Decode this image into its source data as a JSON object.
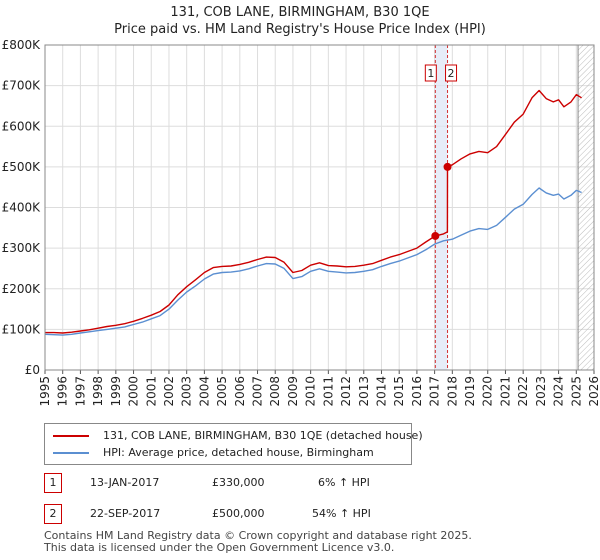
{
  "title_line1": "131, COB LANE, BIRMINGHAM, B30 1QE",
  "title_line2": "Price paid vs. HM Land Registry's House Price Index (HPI)",
  "chart_data": {
    "type": "line",
    "xlim": [
      1995,
      2026
    ],
    "ylim": [
      0,
      800000
    ],
    "x_ticks": [
      1995,
      1996,
      1997,
      1998,
      1999,
      2000,
      2001,
      2002,
      2003,
      2004,
      2005,
      2006,
      2007,
      2008,
      2009,
      2010,
      2011,
      2012,
      2013,
      2014,
      2015,
      2016,
      2017,
      2018,
      2019,
      2020,
      2021,
      2022,
      2023,
      2024,
      2025,
      2026
    ],
    "y_ticks": [
      {
        "value": 0,
        "label": "£0"
      },
      {
        "value": 100000,
        "label": "£100K"
      },
      {
        "value": 200000,
        "label": "£200K"
      },
      {
        "value": 300000,
        "label": "£300K"
      },
      {
        "value": 400000,
        "label": "£400K"
      },
      {
        "value": 500000,
        "label": "£500K"
      },
      {
        "value": 600000,
        "label": "£600K"
      },
      {
        "value": 700000,
        "label": "£700K"
      },
      {
        "value": 800000,
        "label": "£800K"
      }
    ],
    "grid": true,
    "hatched_region_start": 2025.1,
    "series": [
      {
        "name": "131, COB LANE, BIRMINGHAM, B30 1QE (detached house)",
        "color": "#cc0000",
        "points": [
          [
            1995.0,
            92000
          ],
          [
            1995.5,
            92000
          ],
          [
            1996.0,
            91000
          ],
          [
            1996.5,
            93000
          ],
          [
            1997.0,
            96000
          ],
          [
            1997.5,
            99000
          ],
          [
            1998.0,
            103000
          ],
          [
            1998.5,
            107000
          ],
          [
            1999.0,
            110000
          ],
          [
            1999.5,
            114000
          ],
          [
            2000.0,
            120000
          ],
          [
            2000.5,
            127000
          ],
          [
            2001.0,
            135000
          ],
          [
            2001.5,
            144000
          ],
          [
            2002.0,
            160000
          ],
          [
            2002.5,
            185000
          ],
          [
            2003.0,
            205000
          ],
          [
            2003.5,
            222000
          ],
          [
            2004.0,
            240000
          ],
          [
            2004.5,
            252000
          ],
          [
            2005.0,
            255000
          ],
          [
            2005.5,
            256000
          ],
          [
            2006.0,
            260000
          ],
          [
            2006.5,
            265000
          ],
          [
            2007.0,
            272000
          ],
          [
            2007.5,
            278000
          ],
          [
            2008.0,
            277000
          ],
          [
            2008.5,
            265000
          ],
          [
            2009.0,
            240000
          ],
          [
            2009.5,
            245000
          ],
          [
            2010.0,
            258000
          ],
          [
            2010.5,
            264000
          ],
          [
            2011.0,
            257000
          ],
          [
            2011.5,
            256000
          ],
          [
            2012.0,
            254000
          ],
          [
            2012.5,
            255000
          ],
          [
            2013.0,
            258000
          ],
          [
            2013.5,
            262000
          ],
          [
            2014.0,
            270000
          ],
          [
            2014.5,
            278000
          ],
          [
            2015.0,
            284000
          ],
          [
            2015.5,
            292000
          ],
          [
            2016.0,
            300000
          ],
          [
            2016.5,
            315000
          ],
          [
            2017.04,
            330000
          ],
          [
            2017.5,
            335000
          ],
          [
            2017.72,
            340000
          ],
          [
            2017.73,
            500000
          ],
          [
            2018.0,
            505000
          ],
          [
            2018.5,
            520000
          ],
          [
            2019.0,
            532000
          ],
          [
            2019.5,
            538000
          ],
          [
            2020.0,
            535000
          ],
          [
            2020.5,
            550000
          ],
          [
            2021.0,
            580000
          ],
          [
            2021.5,
            610000
          ],
          [
            2022.0,
            630000
          ],
          [
            2022.5,
            670000
          ],
          [
            2022.9,
            688000
          ],
          [
            2023.3,
            668000
          ],
          [
            2023.7,
            660000
          ],
          [
            2024.0,
            665000
          ],
          [
            2024.3,
            648000
          ],
          [
            2024.7,
            660000
          ],
          [
            2025.0,
            678000
          ],
          [
            2025.3,
            670000
          ]
        ]
      },
      {
        "name": "HPI: Average price, detached house, Birmingham",
        "color": "#5b8fd1",
        "points": [
          [
            1995.0,
            88000
          ],
          [
            1995.5,
            87000
          ],
          [
            1996.0,
            86000
          ],
          [
            1996.5,
            88000
          ],
          [
            1997.0,
            91000
          ],
          [
            1997.5,
            94000
          ],
          [
            1998.0,
            97000
          ],
          [
            1998.5,
            100000
          ],
          [
            1999.0,
            103000
          ],
          [
            1999.5,
            106000
          ],
          [
            2000.0,
            112000
          ],
          [
            2000.5,
            118000
          ],
          [
            2001.0,
            126000
          ],
          [
            2001.5,
            134000
          ],
          [
            2002.0,
            150000
          ],
          [
            2002.5,
            172000
          ],
          [
            2003.0,
            192000
          ],
          [
            2003.5,
            207000
          ],
          [
            2004.0,
            224000
          ],
          [
            2004.5,
            236000
          ],
          [
            2005.0,
            240000
          ],
          [
            2005.5,
            241000
          ],
          [
            2006.0,
            244000
          ],
          [
            2006.5,
            249000
          ],
          [
            2007.0,
            256000
          ],
          [
            2007.5,
            262000
          ],
          [
            2008.0,
            261000
          ],
          [
            2008.5,
            250000
          ],
          [
            2009.0,
            225000
          ],
          [
            2009.5,
            230000
          ],
          [
            2010.0,
            243000
          ],
          [
            2010.5,
            249000
          ],
          [
            2011.0,
            243000
          ],
          [
            2011.5,
            241000
          ],
          [
            2012.0,
            239000
          ],
          [
            2012.5,
            240000
          ],
          [
            2013.0,
            243000
          ],
          [
            2013.5,
            247000
          ],
          [
            2014.0,
            255000
          ],
          [
            2014.5,
            262000
          ],
          [
            2015.0,
            268000
          ],
          [
            2015.5,
            276000
          ],
          [
            2016.0,
            284000
          ],
          [
            2016.5,
            296000
          ],
          [
            2017.0,
            310000
          ],
          [
            2017.5,
            318000
          ],
          [
            2018.0,
            322000
          ],
          [
            2018.5,
            332000
          ],
          [
            2019.0,
            342000
          ],
          [
            2019.5,
            348000
          ],
          [
            2020.0,
            346000
          ],
          [
            2020.5,
            356000
          ],
          [
            2021.0,
            376000
          ],
          [
            2021.5,
            396000
          ],
          [
            2022.0,
            408000
          ],
          [
            2022.5,
            432000
          ],
          [
            2022.9,
            448000
          ],
          [
            2023.3,
            436000
          ],
          [
            2023.7,
            430000
          ],
          [
            2024.0,
            433000
          ],
          [
            2024.3,
            421000
          ],
          [
            2024.7,
            430000
          ],
          [
            2025.0,
            442000
          ],
          [
            2025.3,
            437000
          ]
        ]
      }
    ],
    "markers": [
      {
        "label": "1",
        "x": 2017.04,
        "y": 330000
      },
      {
        "label": "2",
        "x": 2017.73,
        "y": 500000
      }
    ]
  },
  "legend": {
    "items": [
      {
        "label": "131, COB LANE, BIRMINGHAM, B30 1QE (detached house)",
        "color": "#cc0000"
      },
      {
        "label": "HPI: Average price, detached house, Birmingham",
        "color": "#5b8fd1"
      }
    ]
  },
  "transactions": [
    {
      "num": "1",
      "date": "13-JAN-2017",
      "price": "£330,000",
      "hpi": "6% ↑ HPI"
    },
    {
      "num": "2",
      "date": "22-SEP-2017",
      "price": "£500,000",
      "hpi": "54% ↑ HPI"
    }
  ],
  "footer_line1": "Contains HM Land Registry data © Crown copyright and database right 2025.",
  "footer_line2": "This data is licensed under the Open Government Licence v3.0."
}
